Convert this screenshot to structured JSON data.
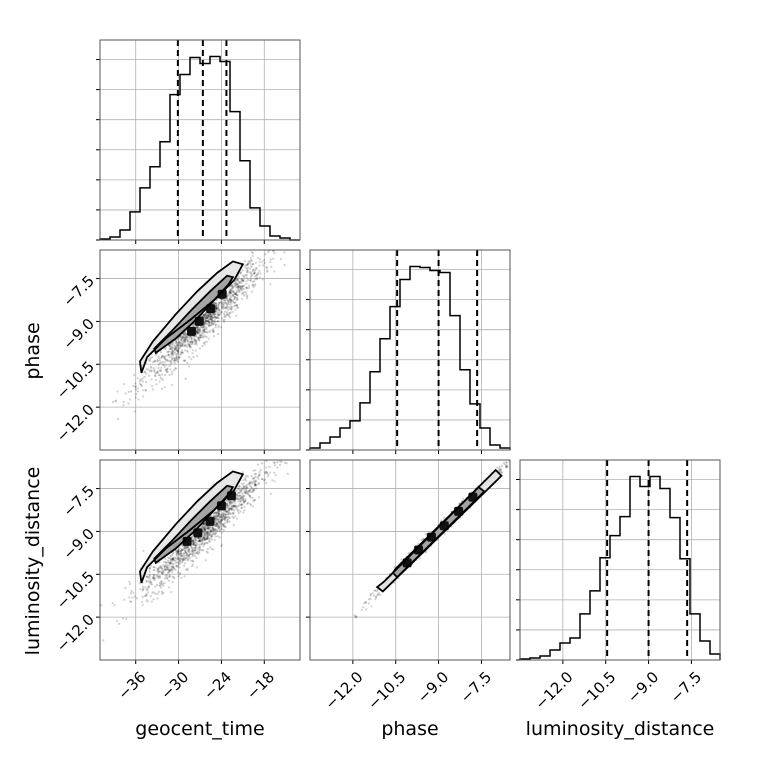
{
  "chart_data": {
    "type": "corner",
    "parameters": [
      "geocent_time",
      "phase",
      "luminosity_distance"
    ],
    "axes": {
      "geocent_time": {
        "range": [
          -41,
          -13
        ],
        "ticks": [
          -36,
          -30,
          -24,
          -18
        ],
        "tick_labels": [
          "−36",
          "−30",
          "−24",
          "−18"
        ]
      },
      "phase": {
        "range": [
          -13.5,
          -6.5
        ],
        "ticks": [
          -12.0,
          -10.5,
          -9.0,
          -7.5
        ],
        "tick_labels": [
          "−12.0",
          "−10.5",
          "−9.0",
          "−7.5"
        ]
      },
      "luminosity_distance": {
        "range": [
          -13.5,
          -6.5
        ],
        "ticks": [
          -12.0,
          -10.5,
          -9.0,
          -7.5
        ],
        "tick_labels": [
          "−12.0",
          "−10.5",
          "−9.0",
          "−7.5"
        ]
      }
    },
    "histograms": {
      "geocent_time": {
        "bin_edges": [
          -41,
          -39.6,
          -38.2,
          -36.8,
          -35.4,
          -34,
          -32.6,
          -31.2,
          -29.8,
          -28.4,
          -27,
          -25.6,
          -24.2,
          -22.8,
          -21.4,
          -20,
          -18.6,
          -17.2,
          -15.8,
          -14.4,
          -13
        ],
        "counts": [
          1,
          3,
          10,
          28,
          52,
          73,
          98,
          145,
          165,
          182,
          176,
          183,
          178,
          128,
          79,
          32,
          14,
          4,
          2,
          0
        ],
        "quantiles": [
          -30.1,
          -26.6,
          -23.3
        ]
      },
      "phase": {
        "bin_edges": [
          -13.5,
          -13.15,
          -12.8,
          -12.45,
          -12.1,
          -11.75,
          -11.4,
          -11.05,
          -10.7,
          -10.35,
          -10,
          -9.65,
          -9.3,
          -8.95,
          -8.6,
          -8.25,
          -7.9,
          -7.55,
          -7.2,
          -6.85,
          -6.5
        ],
        "counts": [
          2,
          7,
          13,
          22,
          29,
          47,
          78,
          111,
          143,
          170,
          183,
          182,
          179,
          177,
          134,
          80,
          46,
          22,
          5,
          2
        ],
        "quantiles": [
          -10.45,
          -9.0,
          -7.65
        ]
      },
      "luminosity_distance": {
        "bin_edges": [
          -13.5,
          -13.15,
          -12.8,
          -12.45,
          -12.1,
          -11.75,
          -11.4,
          -11.05,
          -10.7,
          -10.35,
          -10,
          -9.65,
          -9.3,
          -8.95,
          -8.6,
          -8.25,
          -7.9,
          -7.55,
          -7.2,
          -6.85,
          -6.5
        ],
        "counts": [
          1,
          2,
          4,
          10,
          17,
          22,
          46,
          69,
          102,
          124,
          143,
          183,
          173,
          183,
          171,
          142,
          101,
          46,
          19,
          6
        ],
        "quantiles": [
          -10.45,
          -9.0,
          -7.65
        ]
      }
    },
    "pairs": [
      {
        "x": "geocent_time",
        "y": "phase",
        "samples": {
          "center_x": -26.6,
          "center_y": -9.0,
          "sd_x": 4.2,
          "sd_y": 1.05,
          "correlation": 0.94,
          "count": 1400
        },
        "contours": [
          [
            [
              -35.2,
              -10.8
            ],
            [
              -34.4,
              -10.25
            ],
            [
              -31.8,
              -9.6
            ],
            [
              -28.4,
              -8.95
            ],
            [
              -25.0,
              -8.25
            ],
            [
              -22.2,
              -7.55
            ],
            [
              -21.0,
              -7.0
            ],
            [
              -22.4,
              -6.9
            ],
            [
              -24.6,
              -7.3
            ],
            [
              -27.4,
              -7.95
            ],
            [
              -30.4,
              -8.75
            ],
            [
              -33.6,
              -9.7
            ],
            [
              -35.4,
              -10.4
            ]
          ],
          [
            [
              -33.2,
              -10.1
            ],
            [
              -30.4,
              -9.6
            ],
            [
              -27.6,
              -8.95
            ],
            [
              -25.2,
              -8.3
            ],
            [
              -23.0,
              -7.7
            ],
            [
              -22.4,
              -7.45
            ],
            [
              -23.2,
              -7.4
            ],
            [
              -25.6,
              -7.95
            ],
            [
              -28.2,
              -8.6
            ],
            [
              -31.0,
              -9.35
            ],
            [
              -33.4,
              -9.95
            ]
          ]
        ],
        "dense_points": [
          [
            -28.2,
            -9.35
          ],
          [
            -27.1,
            -9.0
          ],
          [
            -25.5,
            -8.55
          ],
          [
            -23.9,
            -8.05
          ]
        ]
      },
      {
        "x": "geocent_time",
        "y": "luminosity_distance",
        "samples": {
          "center_x": -26.6,
          "center_y": -9.0,
          "sd_x": 4.2,
          "sd_y": 1.05,
          "correlation": 0.94,
          "count": 1400
        },
        "contours": [
          [
            [
              -35.2,
              -10.8
            ],
            [
              -34.4,
              -10.25
            ],
            [
              -31.8,
              -9.6
            ],
            [
              -28.4,
              -8.95
            ],
            [
              -25.0,
              -8.25
            ],
            [
              -22.2,
              -7.55
            ],
            [
              -21.0,
              -7.0
            ],
            [
              -22.4,
              -6.9
            ],
            [
              -24.6,
              -7.3
            ],
            [
              -27.4,
              -7.95
            ],
            [
              -30.4,
              -8.75
            ],
            [
              -33.6,
              -9.7
            ],
            [
              -35.4,
              -10.4
            ]
          ],
          [
            [
              -33.2,
              -10.1
            ],
            [
              -30.4,
              -9.6
            ],
            [
              -27.6,
              -8.95
            ],
            [
              -25.2,
              -8.3
            ],
            [
              -23.0,
              -7.7
            ],
            [
              -22.4,
              -7.45
            ],
            [
              -23.2,
              -7.4
            ],
            [
              -25.6,
              -7.95
            ],
            [
              -28.2,
              -8.6
            ],
            [
              -31.0,
              -9.35
            ],
            [
              -33.4,
              -9.95
            ]
          ]
        ],
        "dense_points": [
          [
            -28.8,
            -9.35
          ],
          [
            -27.3,
            -9.05
          ],
          [
            -25.6,
            -8.65
          ],
          [
            -24.0,
            -8.1
          ],
          [
            -22.6,
            -7.75
          ]
        ]
      },
      {
        "x": "phase",
        "y": "luminosity_distance",
        "samples": {
          "center_x": -9.0,
          "center_y": -9.0,
          "sd_x": 1.05,
          "sd_y": 1.05,
          "correlation": 0.995,
          "count": 1400
        },
        "contours": [
          [
            [
              -11.15,
              -10.95
            ],
            [
              -10.95,
              -11.1
            ],
            [
              -7.0,
              -7.25
            ],
            [
              -6.8,
              -7.05
            ],
            [
              -7.0,
              -6.85
            ],
            [
              -10.9,
              -10.75
            ],
            [
              -11.15,
              -10.95
            ]
          ],
          [
            [
              -10.6,
              -10.45
            ],
            [
              -10.45,
              -10.6
            ],
            [
              -7.55,
              -7.75
            ],
            [
              -7.4,
              -7.6
            ],
            [
              -7.6,
              -7.45
            ],
            [
              -10.5,
              -10.3
            ],
            [
              -10.6,
              -10.45
            ]
          ]
        ],
        "dense_points": [
          [
            -10.1,
            -10.1
          ],
          [
            -9.7,
            -9.65
          ],
          [
            -9.25,
            -9.2
          ],
          [
            -8.8,
            -8.8
          ],
          [
            -8.3,
            -8.3
          ],
          [
            -7.8,
            -7.8
          ]
        ]
      }
    ],
    "grid": true
  }
}
